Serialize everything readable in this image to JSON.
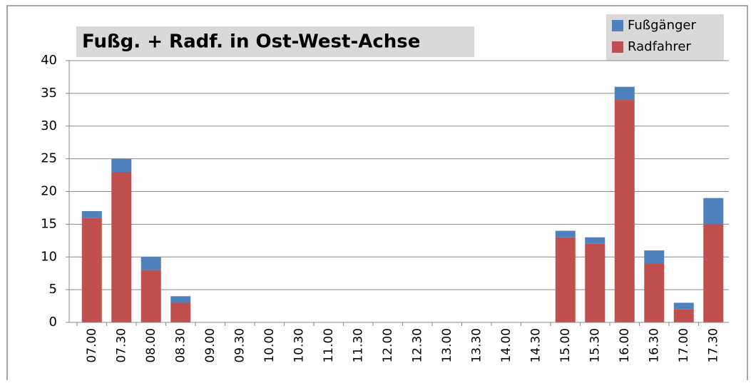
{
  "chart_data": {
    "type": "stacked_bar",
    "title": "Fußg. + Radf. in Ost-West-Achse",
    "categories": [
      "07.00",
      "07.30",
      "08.00",
      "08.30",
      "09.00",
      "09.30",
      "10.00",
      "10.30",
      "11.00",
      "11.30",
      "12.00",
      "12.30",
      "13.00",
      "13.30",
      "14.00",
      "14.30",
      "15.00",
      "15.30",
      "16.00",
      "16.30",
      "17.00",
      "17.30"
    ],
    "series": [
      {
        "name": "Radfahrer",
        "color": "#c0504d",
        "values": [
          16,
          23,
          8,
          3,
          0,
          0,
          0,
          0,
          0,
          0,
          0,
          0,
          0,
          0,
          0,
          0,
          13,
          12,
          34,
          9,
          2,
          15
        ]
      },
      {
        "name": "Fußgänger",
        "color": "#4f81bd",
        "values": [
          1,
          2,
          2,
          1,
          0,
          0,
          0,
          0,
          0,
          0,
          0,
          0,
          0,
          0,
          0,
          0,
          1,
          1,
          2,
          2,
          1,
          4
        ]
      }
    ],
    "ylim": [
      0,
      40
    ],
    "yticks": [
      0,
      5,
      10,
      15,
      20,
      25,
      30,
      35,
      40
    ],
    "grid": true,
    "legend": "top-right"
  }
}
